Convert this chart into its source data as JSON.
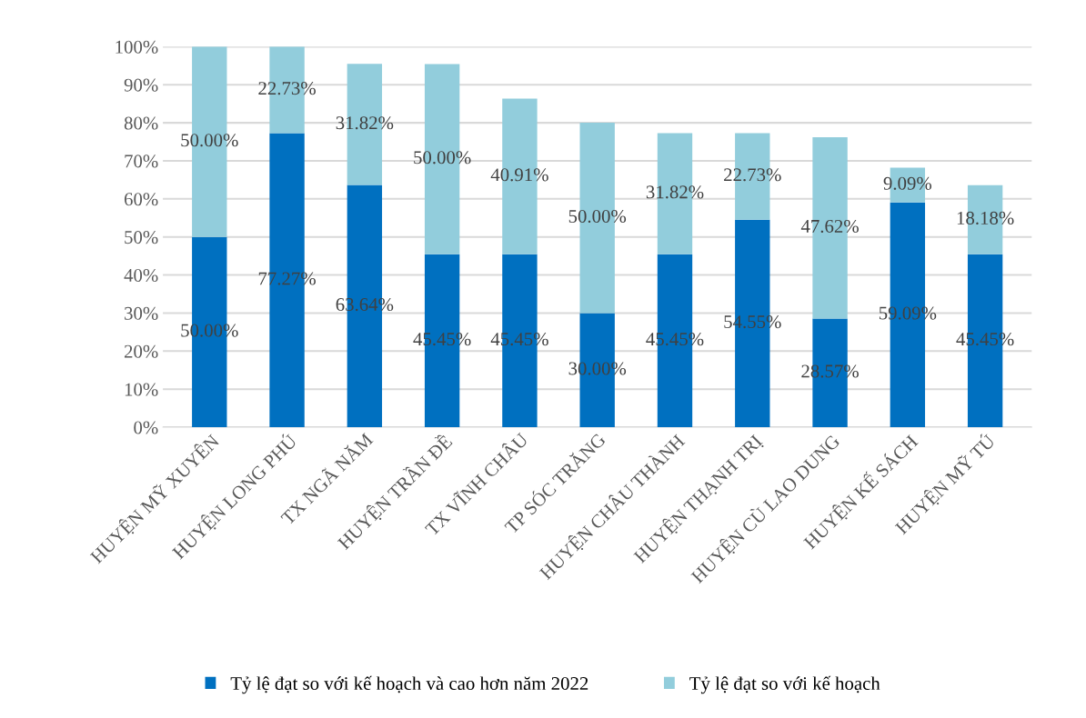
{
  "chart_data": {
    "type": "bar",
    "stacked": true,
    "categories": [
      "HUYỆN MỸ XUYÊN",
      "HUYỆN LONG PHÚ",
      "TX NGÃ NĂM",
      "HUYỆN TRẦN ĐỀ",
      "TX VĨNH CHÂU",
      "TP SÓC TRĂNG",
      "HUYỆN CHÂU THÀNH",
      "HUYỆN THẠNH TRỊ",
      "HUYỆN CÙ LAO DUNG",
      "HUYỆN KẾ SÁCH",
      "HUYỆN MỸ TÚ"
    ],
    "series": [
      {
        "name": "Tỷ lệ đạt so với kế hoạch và cao hơn năm 2022",
        "color": "#0070c0",
        "values": [
          50.0,
          77.27,
          63.64,
          45.45,
          45.45,
          30.0,
          45.45,
          54.55,
          28.57,
          59.09,
          45.45
        ],
        "value_labels": [
          "50.00%",
          "77.27%",
          "63.64%",
          "45.45%",
          "45.45%",
          "30.00%",
          "45.45%",
          "54.55%",
          "28.57%",
          "59.09%",
          "45.45%"
        ]
      },
      {
        "name": "Tỷ lệ đạt so với kế hoạch",
        "color": "#92cddc",
        "values": [
          50.0,
          22.73,
          31.82,
          50.0,
          40.91,
          50.0,
          31.82,
          22.73,
          47.62,
          9.09,
          18.18
        ],
        "value_labels": [
          "50.00%",
          "22.73%",
          "31.82%",
          "50.00%",
          "40.91%",
          "50.00%",
          "31.82%",
          "22.73%",
          "47.62%",
          "9.09%",
          "18.18%"
        ]
      }
    ],
    "ylim": [
      0,
      100
    ],
    "yticks": [
      {
        "value": 0,
        "label": "0%"
      },
      {
        "value": 10,
        "label": "10%"
      },
      {
        "value": 20,
        "label": "20%"
      },
      {
        "value": 30,
        "label": "30%"
      },
      {
        "value": 40,
        "label": "40%"
      },
      {
        "value": 50,
        "label": "50%"
      },
      {
        "value": 60,
        "label": "60%"
      },
      {
        "value": 70,
        "label": "70%"
      },
      {
        "value": 80,
        "label": "80%"
      },
      {
        "value": 90,
        "label": "90%"
      },
      {
        "value": 100,
        "label": "100%"
      }
    ],
    "grid": "y",
    "legend": "bottom"
  }
}
